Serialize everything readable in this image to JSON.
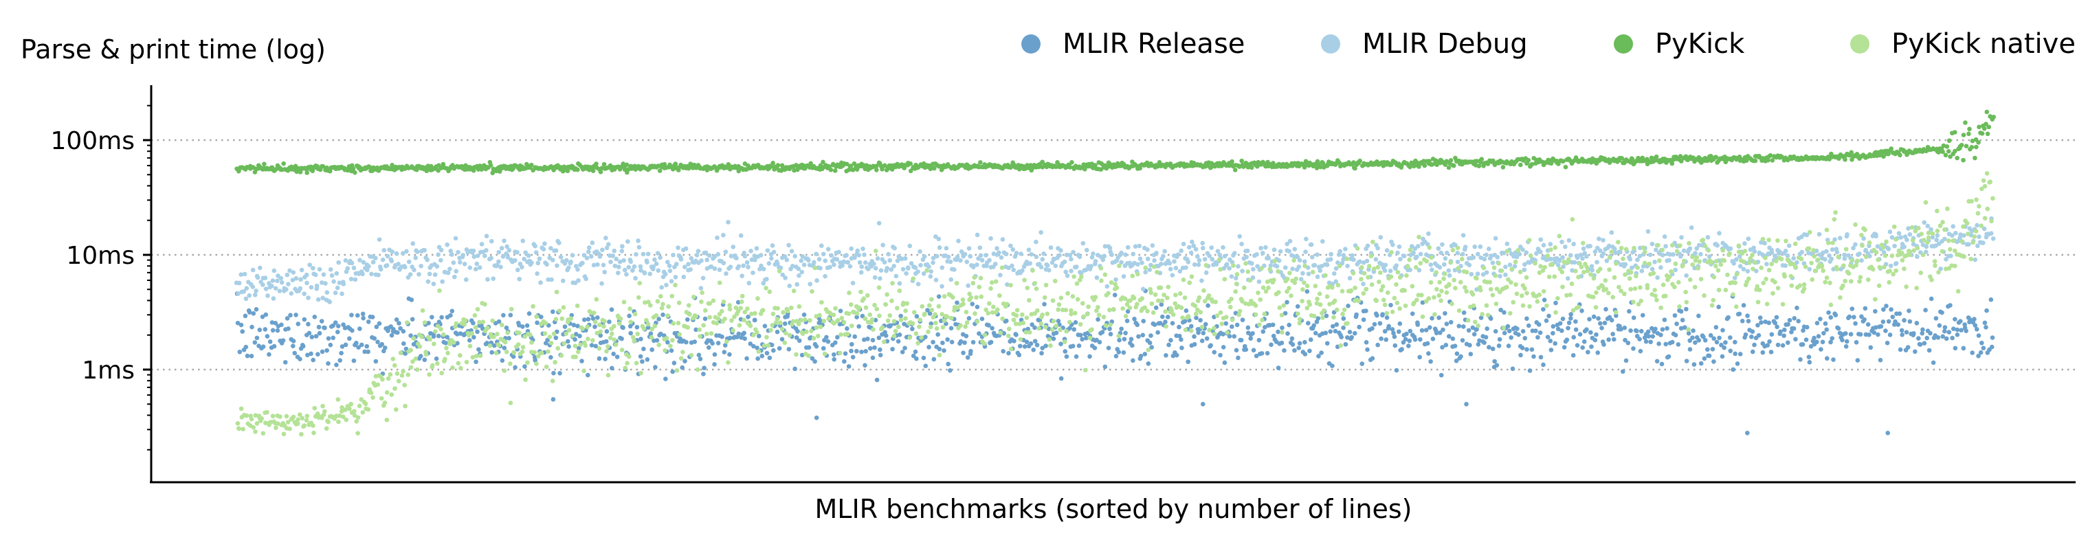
{
  "chart_data": {
    "type": "scatter",
    "ylabel": "Parse & print time (log)",
    "xlabel": "MLIR benchmarks (sorted by number of lines)",
    "yscale": "log",
    "yunit": "ms",
    "ylim": [
      0.1,
      300
    ],
    "xlim": [
      0,
      1
    ],
    "yticks": [
      {
        "value": 100,
        "label": "100ms"
      },
      {
        "value": 10,
        "label": "10ms"
      },
      {
        "value": 1,
        "label": "1ms"
      }
    ],
    "grid": "horizontal dotted at major ticks",
    "legend_position": "top",
    "x_note": "x = benchmark rank fraction (0 = fewest lines, 1 = most lines); y in ms",
    "series": [
      {
        "name": "MLIR Release",
        "color": "#6aa0cc",
        "trend": [
          [
            0.05,
            2.0
          ],
          [
            0.3,
            1.9
          ],
          [
            0.6,
            2.0
          ],
          [
            0.9,
            2.1
          ],
          [
            1.0,
            2.3
          ]
        ],
        "spread": [
          1.0,
          3.5
        ],
        "outliers": [
          [
            0.18,
            0.55
          ],
          [
            0.33,
            0.38
          ],
          [
            0.86,
            0.28
          ],
          [
            0.94,
            0.28
          ],
          [
            0.7,
            0.5
          ],
          [
            0.55,
            0.5
          ]
        ]
      },
      {
        "name": "MLIR Debug",
        "color": "#a8cfe6",
        "trend": [
          [
            0.05,
            5.8
          ],
          [
            0.08,
            9.0
          ],
          [
            0.3,
            8.5
          ],
          [
            0.6,
            8.8
          ],
          [
            0.9,
            10.0
          ],
          [
            1.0,
            15.0
          ]
        ],
        "spread": [
          6.0,
          13.0
        ]
      },
      {
        "name": "PyKick",
        "color": "#6abb59",
        "trend": [
          [
            0.05,
            57
          ],
          [
            0.3,
            58
          ],
          [
            0.6,
            61
          ],
          [
            0.9,
            70
          ],
          [
            0.98,
            85
          ],
          [
            1.0,
            150
          ]
        ],
        "spread": [
          54,
          75
        ]
      },
      {
        "name": "PyKick native",
        "color": "#b4e296",
        "trend": [
          [
            0.05,
            0.35
          ],
          [
            0.07,
            0.45
          ],
          [
            0.1,
            1.6
          ],
          [
            0.3,
            2.8
          ],
          [
            0.6,
            4.5
          ],
          [
            0.9,
            8.0
          ],
          [
            0.98,
            12.0
          ],
          [
            1.0,
            40
          ]
        ],
        "spread": [
          1.0,
          13.0
        ]
      }
    ]
  }
}
